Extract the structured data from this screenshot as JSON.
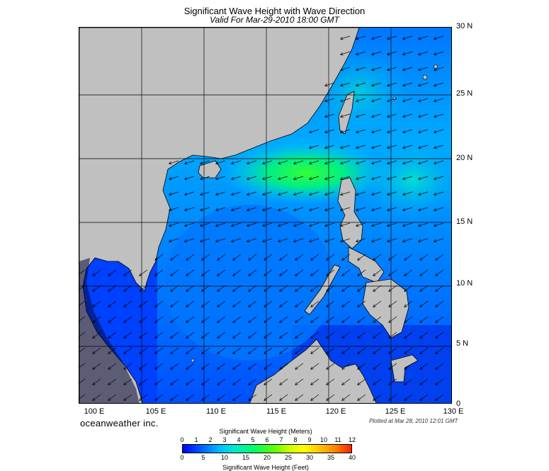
{
  "title": "Significant Wave Height with Wave Direction",
  "valid_time": "Valid For Mar-29-2010 18:00 GMT",
  "lat_labels": [
    "30 N",
    "25 N",
    "20 N",
    "15 N",
    "10 N",
    "5 N",
    "0"
  ],
  "lon_labels": [
    "100 E",
    "105 E",
    "110 E",
    "115 E",
    "120 E",
    "125 E",
    "130 E"
  ],
  "brand": "oceanweather inc.",
  "plotted": "Plotted at Mar 28, 2010 12:01 GMT",
  "colorbar": {
    "meters_title": "Significant Wave Height (Meters)",
    "meters_ticks": [
      "0",
      "1",
      "2",
      "3",
      "4",
      "5",
      "6",
      "7",
      "8",
      "9",
      "10",
      "11",
      "12"
    ],
    "feet_title": "Significant Wave Height (Feet)",
    "feet_ticks": [
      "0",
      "5",
      "10",
      "15",
      "20",
      "25",
      "30",
      "35",
      "40"
    ]
  },
  "colors": {
    "land": "#c0c0c0",
    "sea_low": "#0033ff",
    "sea_mid": "#0099ff",
    "sea_high": "#00e090",
    "sea_peak": "#22ff44",
    "grid": "#000000"
  }
}
